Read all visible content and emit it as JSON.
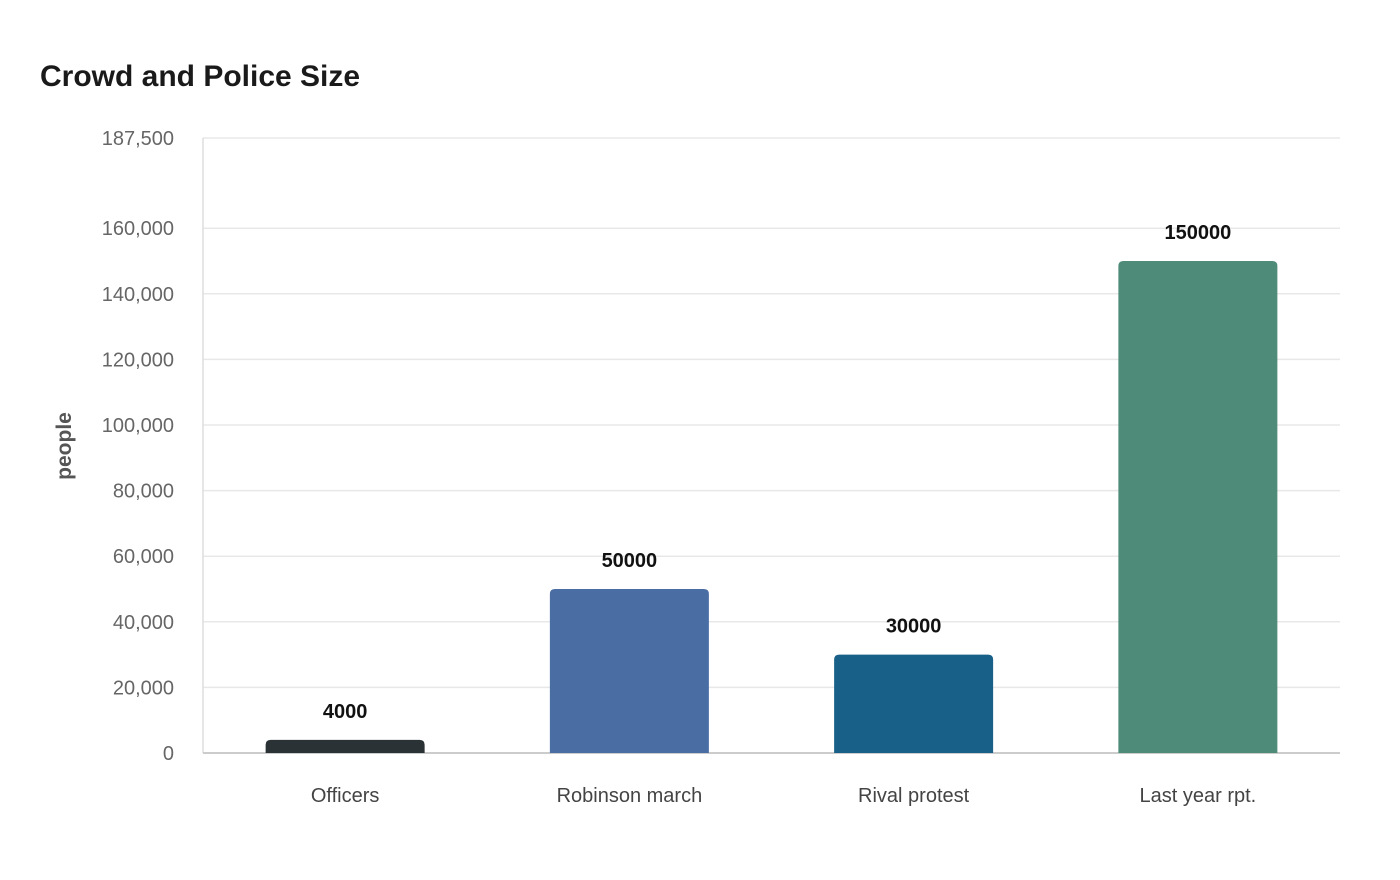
{
  "chart_data": {
    "type": "bar",
    "title": "Crowd and Police Size",
    "xlabel": "",
    "ylabel": "people",
    "categories": [
      "Officers",
      "Robinson march",
      "Rival protest",
      "Last year rpt."
    ],
    "values": [
      4000,
      50000,
      30000,
      150000
    ],
    "value_labels": [
      "4000",
      "50000",
      "30000",
      "150000"
    ],
    "colors": [
      "#2b3236",
      "#4a6da3",
      "#186088",
      "#4e8b79"
    ],
    "ylim": [
      0,
      187500
    ],
    "yticks": [
      0,
      20000,
      40000,
      60000,
      80000,
      100000,
      120000,
      140000,
      160000,
      187500
    ],
    "ytick_labels": [
      "0",
      "20,000",
      "40,000",
      "60,000",
      "80,000",
      "100,000",
      "120,000",
      "140,000",
      "160,000",
      "187,500"
    ],
    "grid": true,
    "legend": "none"
  }
}
